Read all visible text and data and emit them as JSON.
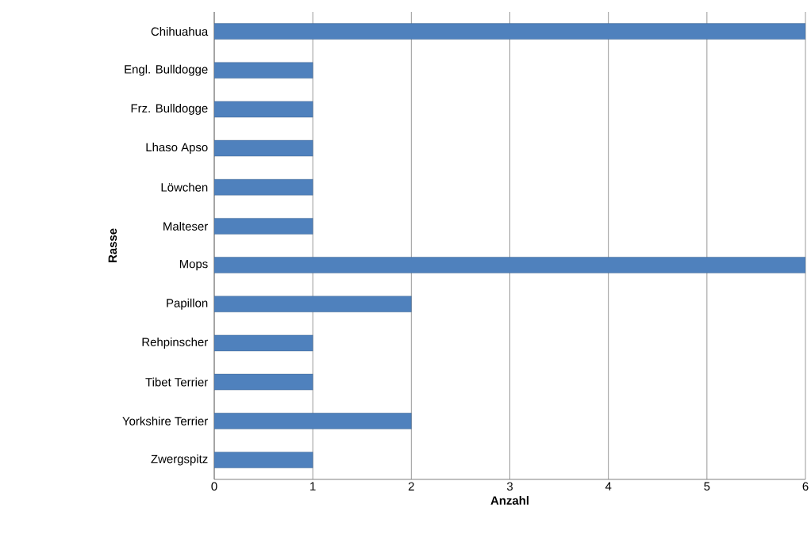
{
  "chart_data": {
    "type": "bar",
    "orientation": "horizontal",
    "xlabel": "Anzahl",
    "ylabel": "Rasse",
    "categories": [
      "Chihuahua",
      "Engl. Bulldogge",
      "Frz. Bulldogge",
      "Lhaso Apso",
      "Löwchen",
      "Malteser",
      "Mops",
      "Papillon",
      "Rehpinscher",
      "Tibet Terrier",
      "Yorkshire Terrier",
      "Zwergspitz"
    ],
    "values": [
      6,
      1,
      1,
      1,
      1,
      1,
      6,
      2,
      1,
      1,
      2,
      1
    ],
    "color": "#4f81bd",
    "xlim": [
      0,
      6
    ],
    "xticks": [
      0,
      1,
      2,
      3,
      4,
      5,
      6
    ],
    "grid": "x"
  }
}
